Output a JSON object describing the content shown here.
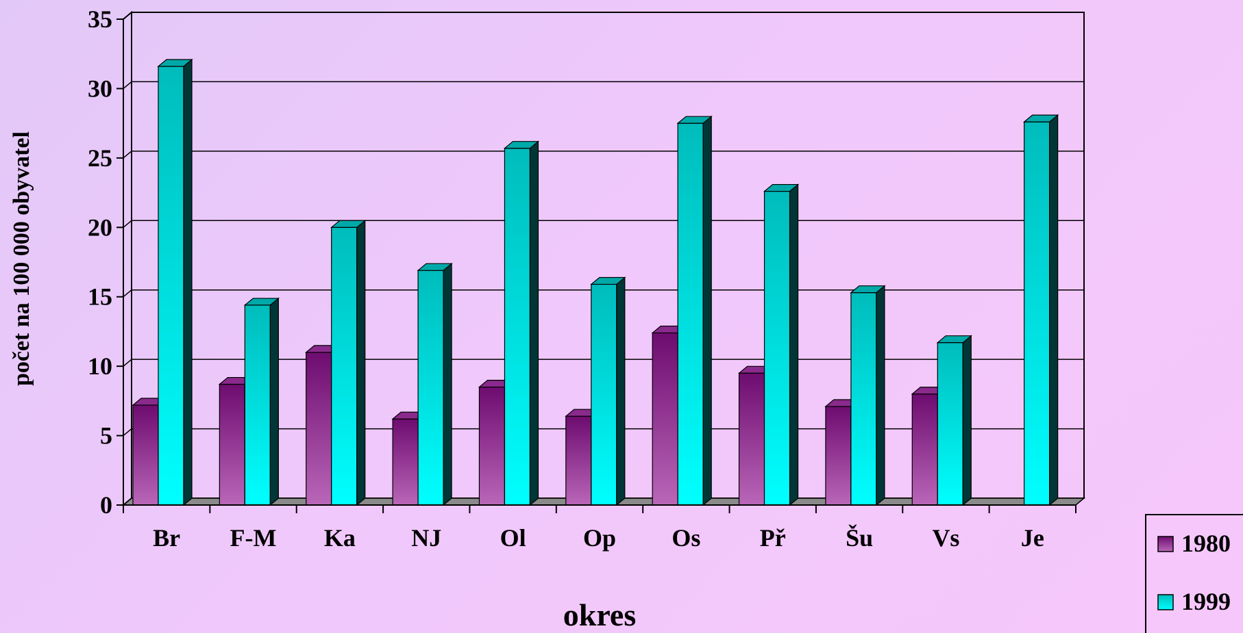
{
  "chart_data": {
    "type": "bar",
    "title": "",
    "xlabel": "okres",
    "ylabel": "počet na 100 000 obyvatel",
    "categories": [
      "Br",
      "F-M",
      "Ka",
      "NJ",
      "Ol",
      "Op",
      "Os",
      "Př",
      "Šu",
      "Vs",
      "Je"
    ],
    "series": [
      {
        "name": "1980",
        "color": "#7a1a7e",
        "values": [
          7.2,
          8.7,
          11.0,
          6.2,
          8.5,
          6.4,
          12.4,
          9.5,
          7.1,
          8.0,
          null
        ]
      },
      {
        "name": "1999",
        "color": "#00cccc",
        "values": [
          31.6,
          14.4,
          20.0,
          16.9,
          25.7,
          15.9,
          27.5,
          22.6,
          15.3,
          11.7,
          27.6
        ]
      }
    ],
    "ylim": [
      0,
      35
    ],
    "yticks": [
      "0",
      "5",
      "10",
      "15",
      "20",
      "25",
      "30",
      "35"
    ],
    "grid": true,
    "legend_position": "bottom-right"
  }
}
